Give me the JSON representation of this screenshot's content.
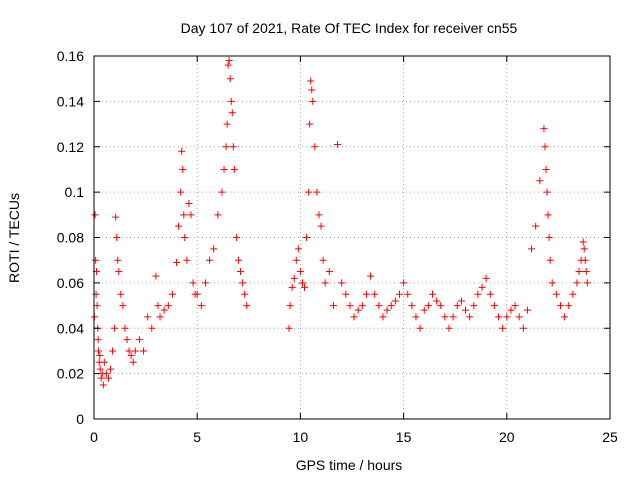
{
  "chart_data": {
    "type": "scatter",
    "title": "Day 107 of 2021, Rate Of TEC Index for receiver cn55",
    "xlabel": "GPS time / hours",
    "ylabel": "ROTI / TECUs",
    "xlim": [
      0,
      25
    ],
    "ylim": [
      0,
      0.16
    ],
    "x_ticks": [
      0,
      5,
      10,
      15,
      20,
      25
    ],
    "y_ticks": [
      0,
      0.02,
      0.04,
      0.06,
      0.08,
      0.1,
      0.12,
      0.14,
      0.16
    ],
    "x_tick_labels": [
      "0",
      "5",
      "10",
      "15",
      "20",
      "25"
    ],
    "y_tick_labels": [
      "0",
      "0.02",
      "0.04",
      "0.06",
      "0.08",
      "0.1",
      "0.12",
      "0.14",
      "0.16"
    ],
    "grid": true,
    "marker": "plus",
    "color": "#ff0000",
    "data_gap_hours": [
      7.5,
      9.4
    ],
    "series": [
      {
        "x": [
          0.02,
          0.05,
          0.08,
          0.1,
          0.12,
          0.15,
          0.18,
          0.2,
          0.22,
          0.25,
          0.28,
          0.3,
          0.35,
          0.4,
          0.45,
          0.5,
          0.6,
          0.7,
          0.8,
          0.9,
          1.0,
          1.05,
          1.1,
          1.15,
          1.2,
          1.3,
          1.4,
          1.5,
          1.6,
          1.7,
          1.8,
          1.9,
          2.0,
          2.2,
          2.4,
          2.6,
          2.8,
          3.0,
          3.1,
          3.2,
          3.4,
          3.6,
          3.8,
          4.0,
          4.1,
          4.2,
          4.25,
          4.3,
          4.35,
          4.4,
          4.5,
          4.6,
          4.7,
          4.8,
          4.9,
          5.0,
          5.2,
          5.4,
          5.6,
          5.8,
          6.0,
          6.2,
          6.3,
          6.4,
          6.45,
          6.5,
          6.55,
          6.6,
          6.65,
          6.7,
          6.75,
          6.8,
          6.9,
          7.0,
          7.1,
          7.2,
          7.3,
          7.4,
          9.45,
          9.5,
          9.6,
          9.7,
          9.8,
          9.9,
          10.0,
          10.1,
          10.2,
          10.3,
          10.4,
          10.45,
          10.5,
          10.55,
          10.6,
          10.7,
          10.8,
          10.9,
          11.0,
          11.1,
          11.2,
          11.4,
          11.6,
          11.8,
          12.0,
          12.2,
          12.4,
          12.6,
          12.8,
          13.0,
          13.2,
          13.4,
          13.6,
          13.8,
          14.0,
          14.2,
          14.4,
          14.6,
          14.8,
          15.0,
          15.2,
          15.4,
          15.6,
          15.8,
          16.0,
          16.2,
          16.4,
          16.6,
          16.8,
          17.0,
          17.2,
          17.4,
          17.6,
          17.8,
          18.0,
          18.2,
          18.4,
          18.6,
          18.8,
          19.0,
          19.2,
          19.4,
          19.6,
          19.8,
          20.0,
          20.2,
          20.4,
          20.6,
          20.8,
          21.0,
          21.2,
          21.4,
          21.6,
          21.8,
          21.85,
          21.9,
          21.95,
          22.0,
          22.05,
          22.1,
          22.2,
          22.4,
          22.6,
          22.8,
          23.0,
          23.2,
          23.4,
          23.5,
          23.6,
          23.7,
          23.75,
          23.8,
          23.85,
          23.9
        ],
        "y": [
          0.045,
          0.09,
          0.07,
          0.055,
          0.065,
          0.05,
          0.04,
          0.035,
          0.03,
          0.025,
          0.028,
          0.022,
          0.018,
          0.02,
          0.015,
          0.025,
          0.02,
          0.018,
          0.022,
          0.03,
          0.04,
          0.089,
          0.08,
          0.07,
          0.065,
          0.055,
          0.05,
          0.04,
          0.035,
          0.03,
          0.028,
          0.025,
          0.03,
          0.035,
          0.03,
          0.045,
          0.04,
          0.063,
          0.05,
          0.045,
          0.048,
          0.05,
          0.055,
          0.069,
          0.085,
          0.1,
          0.118,
          0.11,
          0.09,
          0.08,
          0.07,
          0.095,
          0.09,
          0.06,
          0.055,
          0.055,
          0.05,
          0.06,
          0.07,
          0.075,
          0.09,
          0.1,
          0.11,
          0.12,
          0.13,
          0.156,
          0.158,
          0.15,
          0.14,
          0.135,
          0.12,
          0.11,
          0.08,
          0.07,
          0.065,
          0.06,
          0.055,
          0.05,
          0.04,
          0.05,
          0.058,
          0.062,
          0.07,
          0.075,
          0.065,
          0.06,
          0.058,
          0.08,
          0.1,
          0.13,
          0.149,
          0.145,
          0.14,
          0.12,
          0.1,
          0.09,
          0.085,
          0.07,
          0.06,
          0.065,
          0.05,
          0.121,
          0.06,
          0.055,
          0.05,
          0.045,
          0.048,
          0.05,
          0.055,
          0.063,
          0.055,
          0.05,
          0.045,
          0.048,
          0.05,
          0.052,
          0.055,
          0.06,
          0.055,
          0.05,
          0.045,
          0.04,
          0.048,
          0.05,
          0.055,
          0.052,
          0.05,
          0.045,
          0.04,
          0.045,
          0.05,
          0.052,
          0.048,
          0.045,
          0.05,
          0.055,
          0.058,
          0.062,
          0.055,
          0.05,
          0.045,
          0.04,
          0.045,
          0.048,
          0.05,
          0.045,
          0.04,
          0.048,
          0.075,
          0.085,
          0.105,
          0.128,
          0.12,
          0.11,
          0.1,
          0.09,
          0.08,
          0.07,
          0.06,
          0.055,
          0.05,
          0.045,
          0.05,
          0.055,
          0.06,
          0.065,
          0.07,
          0.078,
          0.075,
          0.07,
          0.065,
          0.06
        ]
      }
    ]
  }
}
